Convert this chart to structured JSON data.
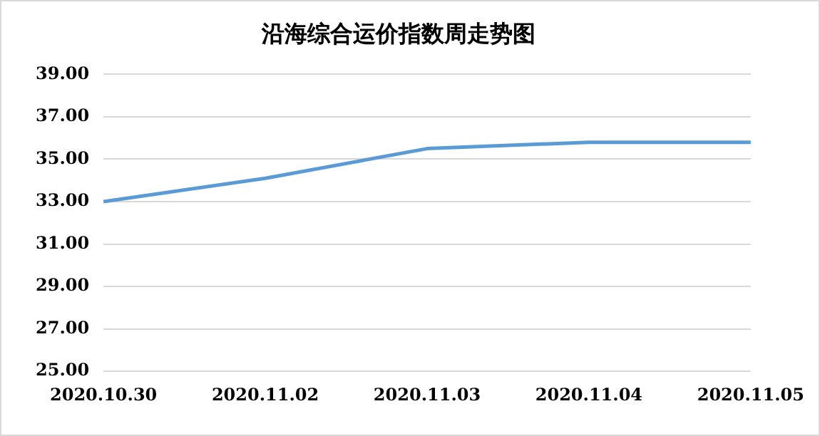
{
  "chart_data": {
    "type": "line",
    "title": "沿海综合运价指数周走势图",
    "categories": [
      "2020.10.30",
      "2020.11.02",
      "2020.11.03",
      "2020.11.04",
      "2020.11.05"
    ],
    "series": [
      {
        "color": "#5b9bd5",
        "values": [
          33.0,
          34.1,
          35.5,
          35.8,
          35.8
        ]
      }
    ],
    "ylim": [
      25,
      39
    ],
    "yticks": [
      {
        "value": 25,
        "label": "25.00"
      },
      {
        "value": 27,
        "label": "27.00"
      },
      {
        "value": 29,
        "label": "29.00"
      },
      {
        "value": 31,
        "label": "31.00"
      },
      {
        "value": 33,
        "label": "33.00"
      },
      {
        "value": 35,
        "label": "35.00"
      },
      {
        "value": 37,
        "label": "37.00"
      },
      {
        "value": 39,
        "label": "39.00"
      }
    ],
    "grid": "y",
    "legend": false,
    "marker": "none",
    "line_style": "solid"
  }
}
